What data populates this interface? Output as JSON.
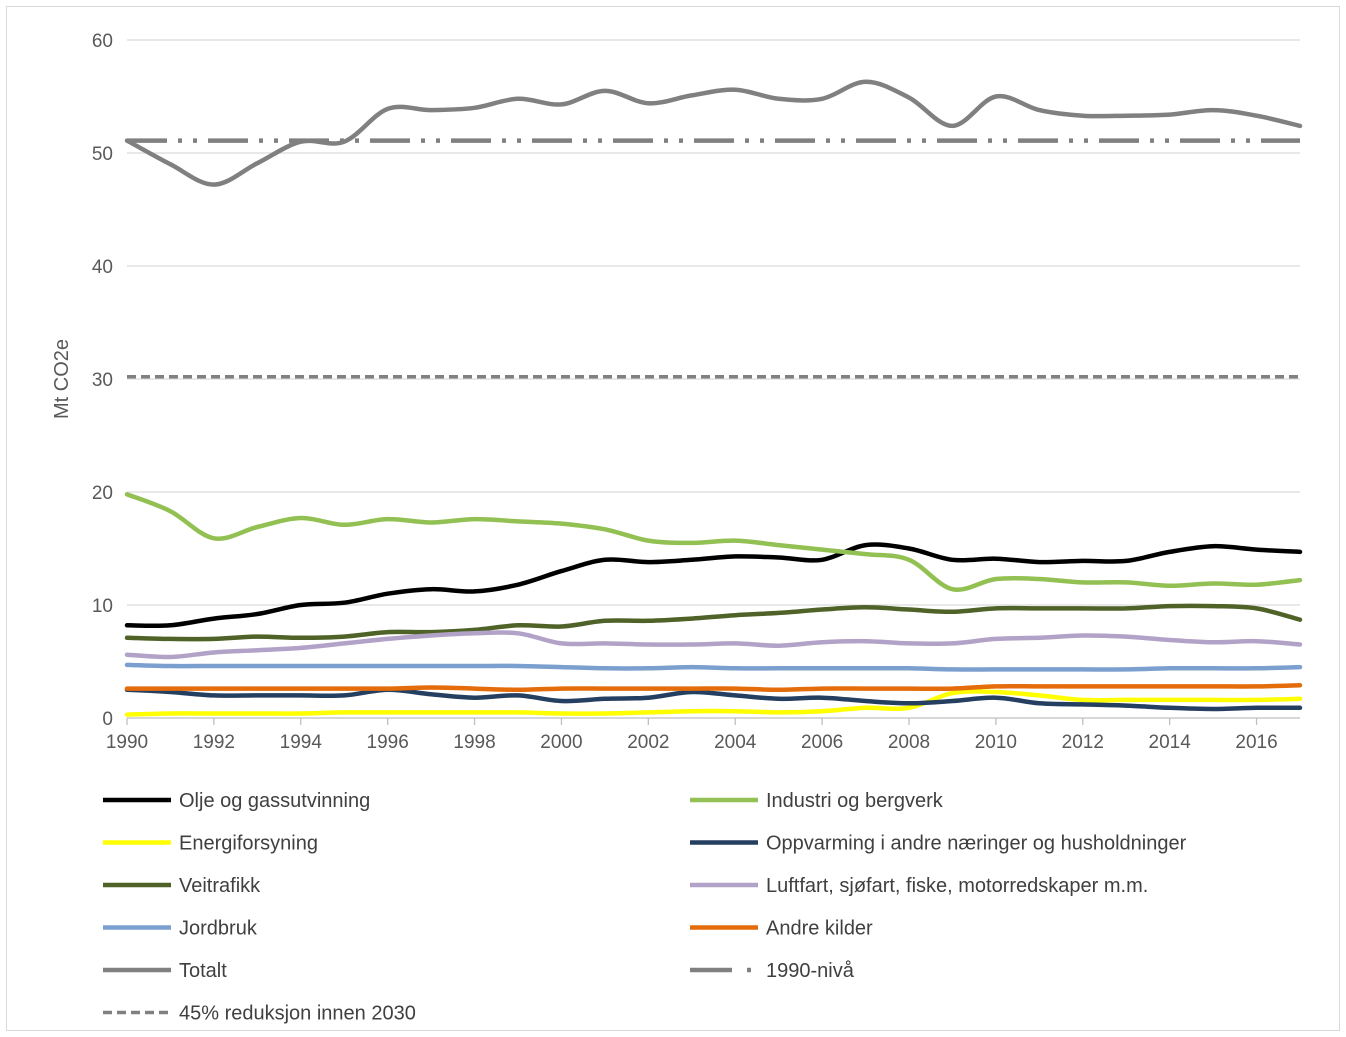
{
  "chart_data": {
    "type": "line",
    "title": "",
    "xlabel": "",
    "ylabel": "Mt CO2e",
    "xlim": [
      1990,
      2017
    ],
    "ylim": [
      0,
      60
    ],
    "x_ticks": [
      "1990",
      "1992",
      "1994",
      "1996",
      "1998",
      "2000",
      "2002",
      "2004",
      "2006",
      "2008",
      "2010",
      "2012",
      "2014",
      "2016"
    ],
    "y_ticks": [
      "0",
      "10",
      "20",
      "30",
      "40",
      "50",
      "60"
    ],
    "grid": "horizontal",
    "legend_position": "bottom",
    "x": [
      1990,
      1991,
      1992,
      1993,
      1994,
      1995,
      1996,
      1997,
      1998,
      1999,
      2000,
      2001,
      2002,
      2003,
      2004,
      2005,
      2006,
      2007,
      2008,
      2009,
      2010,
      2011,
      2012,
      2013,
      2014,
      2015,
      2016,
      2017
    ],
    "series": [
      {
        "name": "Olje og gassutvinning",
        "color": "#000000",
        "dash": "solid",
        "values": [
          8.2,
          8.2,
          8.8,
          9.2,
          10.0,
          10.2,
          11.0,
          11.4,
          11.2,
          11.8,
          13.0,
          14.0,
          13.8,
          14.0,
          14.3,
          14.2,
          14.0,
          15.3,
          15.0,
          14.0,
          14.1,
          13.8,
          13.9,
          13.9,
          14.7,
          15.2,
          14.9,
          14.7
        ]
      },
      {
        "name": "Industri og bergverk",
        "color": "#92c052",
        "dash": "solid",
        "values": [
          19.8,
          18.3,
          15.9,
          16.9,
          17.7,
          17.1,
          17.6,
          17.3,
          17.6,
          17.4,
          17.2,
          16.7,
          15.7,
          15.5,
          15.7,
          15.3,
          14.9,
          14.5,
          14.0,
          11.4,
          12.3,
          12.3,
          12.0,
          12.0,
          11.7,
          11.9,
          11.8,
          12.2
        ]
      },
      {
        "name": "Energiforsyning",
        "color": "#ffff00",
        "dash": "solid",
        "values": [
          0.3,
          0.4,
          0.4,
          0.4,
          0.4,
          0.5,
          0.5,
          0.5,
          0.5,
          0.5,
          0.4,
          0.4,
          0.5,
          0.6,
          0.6,
          0.5,
          0.6,
          0.9,
          0.9,
          2.2,
          2.3,
          2.0,
          1.6,
          1.6,
          1.6,
          1.6,
          1.6,
          1.7
        ]
      },
      {
        "name": "Oppvarming i andre næringer og husholdninger",
        "color": "#243f60",
        "dash": "solid",
        "values": [
          2.5,
          2.3,
          2.0,
          2.0,
          2.0,
          2.0,
          2.5,
          2.1,
          1.8,
          2.0,
          1.5,
          1.7,
          1.8,
          2.3,
          2.0,
          1.7,
          1.8,
          1.5,
          1.3,
          1.5,
          1.8,
          1.3,
          1.2,
          1.1,
          0.9,
          0.8,
          0.9,
          0.9
        ]
      },
      {
        "name": "Veitrafikk",
        "color": "#4f6228",
        "dash": "solid",
        "values": [
          7.1,
          7.0,
          7.0,
          7.2,
          7.1,
          7.2,
          7.6,
          7.6,
          7.8,
          8.2,
          8.1,
          8.6,
          8.6,
          8.8,
          9.1,
          9.3,
          9.6,
          9.8,
          9.6,
          9.4,
          9.7,
          9.7,
          9.7,
          9.7,
          9.9,
          9.9,
          9.7,
          8.7
        ]
      },
      {
        "name": "Luftfart, sjøfart, fiske, motorredskaper m.m.",
        "color": "#b3a2c7",
        "dash": "solid",
        "values": [
          5.6,
          5.4,
          5.8,
          6.0,
          6.2,
          6.6,
          7.0,
          7.3,
          7.5,
          7.5,
          6.6,
          6.6,
          6.5,
          6.5,
          6.6,
          6.4,
          6.7,
          6.8,
          6.6,
          6.6,
          7.0,
          7.1,
          7.3,
          7.2,
          6.9,
          6.7,
          6.8,
          6.5
        ]
      },
      {
        "name": "Jordbruk",
        "color": "#7ba0d0",
        "dash": "solid",
        "values": [
          4.7,
          4.6,
          4.6,
          4.6,
          4.6,
          4.6,
          4.6,
          4.6,
          4.6,
          4.6,
          4.5,
          4.4,
          4.4,
          4.5,
          4.4,
          4.4,
          4.4,
          4.4,
          4.4,
          4.3,
          4.3,
          4.3,
          4.3,
          4.3,
          4.4,
          4.4,
          4.4,
          4.5
        ]
      },
      {
        "name": "Andre kilder",
        "color": "#e46c0a",
        "dash": "solid",
        "values": [
          2.6,
          2.6,
          2.6,
          2.6,
          2.6,
          2.6,
          2.6,
          2.7,
          2.6,
          2.5,
          2.6,
          2.6,
          2.6,
          2.6,
          2.6,
          2.5,
          2.6,
          2.6,
          2.6,
          2.6,
          2.8,
          2.8,
          2.8,
          2.8,
          2.8,
          2.8,
          2.8,
          2.9
        ]
      },
      {
        "name": "Totalt",
        "color": "#808080",
        "dash": "solid",
        "values": [
          51.1,
          49.0,
          47.2,
          49.1,
          51.0,
          51.0,
          53.9,
          53.8,
          54.0,
          54.8,
          54.3,
          55.5,
          54.4,
          55.1,
          55.6,
          54.8,
          54.8,
          56.3,
          54.9,
          52.4,
          55.0,
          53.8,
          53.3,
          53.3,
          53.4,
          53.8,
          53.3,
          52.4
        ]
      },
      {
        "name": "1990-nivå",
        "color": "#808080",
        "dash": "long-dash-dot-dot",
        "values": [
          51.1,
          51.1,
          51.1,
          51.1,
          51.1,
          51.1,
          51.1,
          51.1,
          51.1,
          51.1,
          51.1,
          51.1,
          51.1,
          51.1,
          51.1,
          51.1,
          51.1,
          51.1,
          51.1,
          51.1,
          51.1,
          51.1,
          51.1,
          51.1,
          51.1,
          51.1,
          51.1,
          51.1
        ]
      },
      {
        "name": "45% reduksjon innen 2030",
        "color": "#808080",
        "dash": "dashed",
        "values": [
          30.2,
          30.2,
          30.2,
          30.2,
          30.2,
          30.2,
          30.2,
          30.2,
          30.2,
          30.2,
          30.2,
          30.2,
          30.2,
          30.2,
          30.2,
          30.2,
          30.2,
          30.2,
          30.2,
          30.2,
          30.2,
          30.2,
          30.2,
          30.2,
          30.2,
          30.2,
          30.2,
          30.2
        ]
      }
    ]
  }
}
